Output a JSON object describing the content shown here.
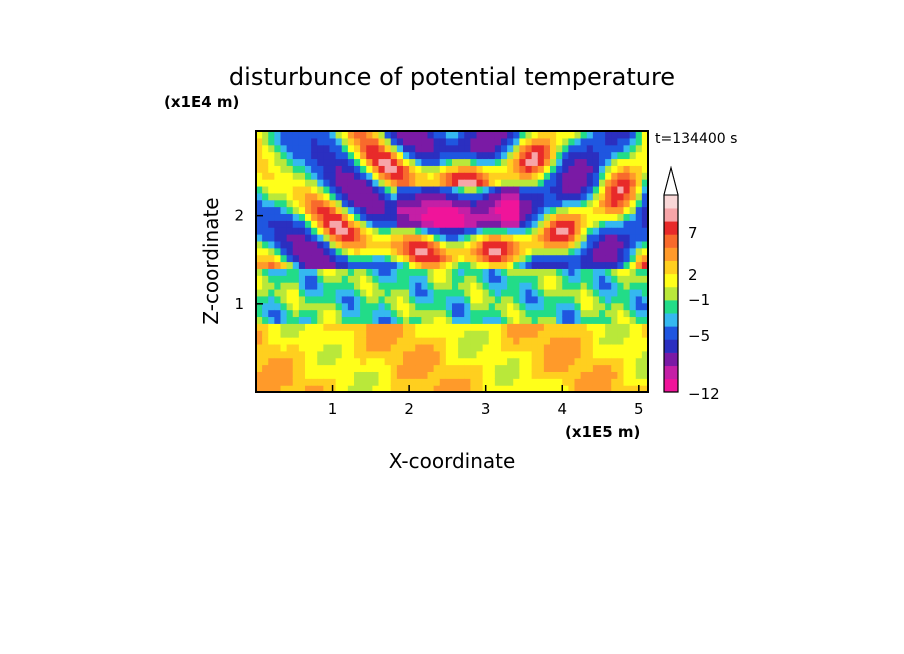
{
  "chart_data": {
    "type": "heatmap",
    "title": "disturbunce of potential temperature",
    "xlabel": "X-coordinate",
    "ylabel": "Z-coordinate",
    "x_unit": "(x1E5 m)",
    "y_unit": "(x1E4 m)",
    "time_label": "t=134400 s",
    "xlim": [
      0,
      5.12
    ],
    "ylim": [
      0,
      2.96
    ],
    "x_ticks": [
      "1",
      "2",
      "3",
      "4",
      "5"
    ],
    "y_ticks": [
      "1",
      "2"
    ],
    "colorbar": {
      "labels": [
        "7",
        "2",
        "-1",
        "-5",
        "-12"
      ],
      "extend": "max",
      "levels_colors": [
        "#f0149a",
        "#c41fa6",
        "#7a1aa5",
        "#2b2fc0",
        "#1f56e0",
        "#35b8f0",
        "#22dc88",
        "#b9e83a",
        "#ffff1a",
        "#ffcf1f",
        "#ff9a2a",
        "#f86a2c",
        "#e82a2a",
        "#f7a5a8",
        "#f9d7d7"
      ]
    },
    "field_description_levels": {
      "lower_layer_z": [
        0,
        0.8
      ],
      "lower_layer_value_range": [
        2,
        5
      ],
      "transition_z": [
        0.8,
        1.4
      ],
      "upper_wave_pattern_z": [
        1.4,
        2.96
      ],
      "upper_value_range": [
        -12,
        7
      ]
    }
  }
}
